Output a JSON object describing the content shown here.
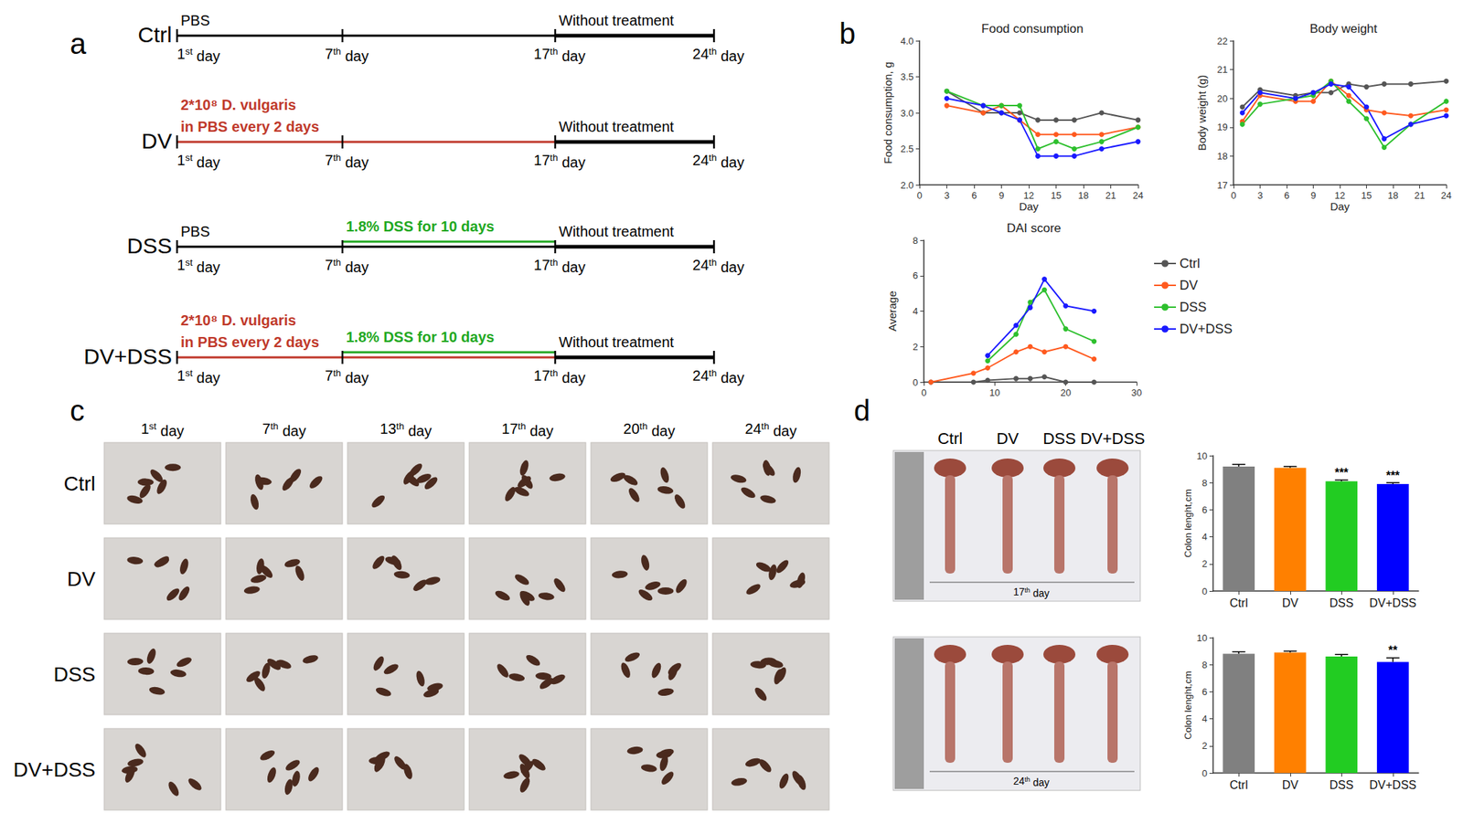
{
  "panel_labels": [
    "a",
    "b",
    "c",
    "d"
  ],
  "timeline": {
    "days": [
      "1st day",
      "7th day",
      "17th day",
      "24th day"
    ],
    "rows": [
      {
        "label": "Ctrl",
        "bars": [
          {
            "from": "1st day",
            "to": "17th day",
            "color": "#000000",
            "line_style": "thin"
          },
          {
            "from": "17th day",
            "to": "24th day",
            "color": "#000000",
            "line_style": "thick"
          }
        ],
        "texts": [
          {
            "lines": [
              "PBS"
            ],
            "at": "1st day",
            "color": "#000000"
          },
          {
            "lines": [
              "Without treatment"
            ],
            "at": "17th day",
            "color": "#000000"
          }
        ]
      },
      {
        "label": "DV",
        "bars": [
          {
            "from": "1st day",
            "to": "17th day",
            "color": "#c0392b",
            "line_style": "thin"
          },
          {
            "from": "17th day",
            "to": "24th day",
            "color": "#000000",
            "line_style": "thick"
          }
        ],
        "texts": [
          {
            "lines": [
              "2*10⁸ D. vulgaris",
              "in PBS every 2 days"
            ],
            "at": "1st day",
            "color": "#c0392b"
          },
          {
            "lines": [
              "Without treatment"
            ],
            "at": "17th day",
            "color": "#000000"
          }
        ]
      },
      {
        "label": "DSS",
        "bars": [
          {
            "from": "1st day",
            "to": "17th day",
            "color": "#000000",
            "line_style": "thin"
          },
          {
            "from": "7th day",
            "to": "17th day",
            "color": "#22a822",
            "line_style": "thin"
          },
          {
            "from": "17th day",
            "to": "24th day",
            "color": "#000000",
            "line_style": "thick"
          }
        ],
        "texts": [
          {
            "lines": [
              "PBS"
            ],
            "at": "1st day",
            "color": "#000000"
          },
          {
            "lines": [
              "1.8% DSS for 10 days"
            ],
            "at": "7th day",
            "color": "#22a822"
          },
          {
            "lines": [
              "Without treatment"
            ],
            "at": "17th day",
            "color": "#000000"
          }
        ]
      },
      {
        "label": "DV+DSS",
        "bars": [
          {
            "from": "1st day",
            "to": "17th day",
            "color": "#c0392b",
            "line_style": "thin"
          },
          {
            "from": "7th day",
            "to": "17th day",
            "color": "#22a822",
            "line_style": "thin"
          },
          {
            "from": "17th day",
            "to": "24th day",
            "color": "#000000",
            "line_style": "thick"
          }
        ],
        "texts": [
          {
            "lines": [
              "2*10⁸ D. vulgaris",
              "in PBS every 2 days"
            ],
            "at": "1st day",
            "color": "#c0392b"
          },
          {
            "lines": [
              "1.8% DSS for 10 days"
            ],
            "at": "7th day",
            "color": "#22a822"
          },
          {
            "lines": [
              "Without treatment"
            ],
            "at": "17th day",
            "color": "#000000"
          }
        ]
      }
    ]
  },
  "chart_data": [
    {
      "type": "line",
      "title": "Food consumption",
      "x_label": "Day",
      "y_label": "Food consumption, g",
      "xlim": [
        0,
        24
      ],
      "xticks": [
        0,
        3,
        6,
        9,
        12,
        15,
        18,
        21,
        24
      ],
      "ylim": [
        2.0,
        4.0
      ],
      "yticks": [
        {
          "value": 2,
          "label": "2.0"
        },
        2.5,
        {
          "value": 3,
          "label": "3.0"
        },
        3.5,
        {
          "value": 4,
          "label": "4.0"
        }
      ],
      "grid": false,
      "marker": "circle",
      "series": [
        {
          "name": "Ctrl",
          "color": "#555555",
          "x": [
            3,
            7,
            9,
            11,
            13,
            15,
            17,
            20,
            24
          ],
          "values": [
            3.3,
            3.0,
            3.0,
            3.0,
            2.9,
            2.9,
            2.9,
            3.0,
            2.9
          ]
        },
        {
          "name": "DV",
          "color": "#ff5a1f",
          "x": [
            3,
            7,
            9,
            11,
            13,
            15,
            17,
            20,
            24
          ],
          "values": [
            3.1,
            3.0,
            3.1,
            2.9,
            2.7,
            2.7,
            2.7,
            2.7,
            2.8
          ]
        },
        {
          "name": "DSS",
          "color": "#2ec02e",
          "x": [
            3,
            7,
            9,
            11,
            13,
            15,
            17,
            20,
            24
          ],
          "values": [
            3.3,
            3.1,
            3.1,
            3.1,
            2.5,
            2.6,
            2.5,
            2.6,
            2.8
          ]
        },
        {
          "name": "DV+DSS",
          "color": "#1a1aff",
          "x": [
            3,
            7,
            9,
            11,
            13,
            15,
            17,
            20,
            24
          ],
          "values": [
            3.2,
            3.1,
            3.0,
            2.9,
            2.4,
            2.4,
            2.4,
            2.5,
            2.6
          ]
        }
      ]
    },
    {
      "type": "line",
      "title": "Body weight",
      "x_label": "Day",
      "y_label": "Body weight (g)",
      "xlim": [
        0,
        24
      ],
      "xticks": [
        0,
        3,
        6,
        9,
        12,
        15,
        18,
        21,
        24
      ],
      "ylim": [
        17,
        22
      ],
      "yticks": [
        17,
        18,
        19,
        20,
        21,
        22
      ],
      "grid": false,
      "marker": "circle",
      "series": [
        {
          "name": "Ctrl",
          "color": "#555555",
          "x": [
            1,
            3,
            7,
            9,
            11,
            13,
            15,
            17,
            20,
            24
          ],
          "values": [
            19.7,
            20.3,
            20.1,
            20.2,
            20.2,
            20.5,
            20.4,
            20.5,
            20.5,
            20.6
          ]
        },
        {
          "name": "DV",
          "color": "#ff5a1f",
          "x": [
            1,
            3,
            7,
            9,
            11,
            13,
            15,
            17,
            20,
            24
          ],
          "values": [
            19.2,
            20.1,
            19.9,
            19.9,
            20.6,
            20.1,
            19.6,
            19.5,
            19.4,
            19.6
          ]
        },
        {
          "name": "DSS",
          "color": "#2ec02e",
          "x": [
            1,
            3,
            7,
            9,
            11,
            13,
            15,
            17,
            20,
            24
          ],
          "values": [
            19.1,
            19.8,
            20.0,
            20.1,
            20.6,
            19.9,
            19.3,
            18.3,
            19.1,
            19.9
          ]
        },
        {
          "name": "DV+DSS",
          "color": "#1a1aff",
          "x": [
            1,
            3,
            7,
            9,
            11,
            13,
            15,
            17,
            20,
            24
          ],
          "values": [
            19.5,
            20.2,
            20.0,
            20.2,
            20.5,
            20.4,
            19.7,
            18.6,
            19.1,
            19.4
          ]
        }
      ]
    },
    {
      "type": "line",
      "title": "DAI score",
      "y_label": "Average",
      "xlim": [
        0,
        30
      ],
      "xticks": [
        0,
        10,
        20,
        30
      ],
      "ylim": [
        0,
        8
      ],
      "yticks": [
        0,
        2,
        4,
        6,
        8
      ],
      "grid": false,
      "marker": "circle",
      "legend": "right",
      "series": [
        {
          "name": "Ctrl",
          "color": "#555555",
          "x": [
            1,
            7,
            9,
            13,
            15,
            17,
            20,
            24
          ],
          "values": [
            0,
            0,
            0.1,
            0.2,
            0.2,
            0.3,
            0,
            0
          ]
        },
        {
          "name": "DV",
          "color": "#ff5a1f",
          "x": [
            1,
            7,
            9,
            13,
            15,
            17,
            20,
            24
          ],
          "values": [
            0,
            0.5,
            0.8,
            1.7,
            2.0,
            1.7,
            2.0,
            1.3
          ]
        },
        {
          "name": "DSS",
          "color": "#2ec02e",
          "x": [
            9,
            13,
            15,
            17,
            20,
            24
          ],
          "values": [
            1.2,
            2.7,
            4.5,
            5.2,
            3.0,
            2.3
          ]
        },
        {
          "name": "DV+DSS",
          "color": "#1a1aff",
          "x": [
            9,
            13,
            15,
            17,
            20,
            24
          ],
          "values": [
            1.5,
            3.2,
            4.2,
            5.8,
            4.3,
            4.0
          ]
        }
      ]
    },
    {
      "type": "bar",
      "y_label": "Colon lenght,cm",
      "categories": [
        "Ctrl",
        "DV",
        "DSS",
        "DV+DSS"
      ],
      "values": [
        9.2,
        9.1,
        8.1,
        7.9
      ],
      "errors": [
        0.15,
        0.1,
        0.1,
        0.1
      ],
      "significance": [
        null,
        null,
        "***",
        "***"
      ],
      "colors": [
        "#808080",
        "#ff8000",
        "#22cc22",
        "#0000ff"
      ],
      "ylim": [
        0,
        10
      ],
      "yticks": [
        0,
        2,
        4,
        6,
        8,
        10
      ],
      "grid": false
    },
    {
      "type": "bar",
      "y_label": "Colon lenght,cm",
      "categories": [
        "Ctrl",
        "DV",
        "DSS",
        "DV+DSS"
      ],
      "values": [
        8.8,
        8.9,
        8.6,
        8.2
      ],
      "errors": [
        0.15,
        0.1,
        0.15,
        0.3
      ],
      "significance": [
        null,
        null,
        null,
        "**"
      ],
      "colors": [
        "#808080",
        "#ff8000",
        "#22cc22",
        "#0000ff"
      ],
      "ylim": [
        0,
        10
      ],
      "yticks": [
        0,
        2,
        4,
        6,
        8,
        10
      ],
      "grid": false
    }
  ],
  "stool_photos": {
    "columns": [
      "1st day",
      "7th day",
      "13th day",
      "17th day",
      "20th day",
      "24th day"
    ],
    "rows": [
      "Ctrl",
      "DV",
      "DSS",
      "DV+DSS"
    ]
  },
  "colon_photos": {
    "columns": [
      "Ctrl",
      "DV",
      "DSS",
      "DV+DSS"
    ],
    "captions": [
      "17th day",
      "24th day"
    ]
  }
}
